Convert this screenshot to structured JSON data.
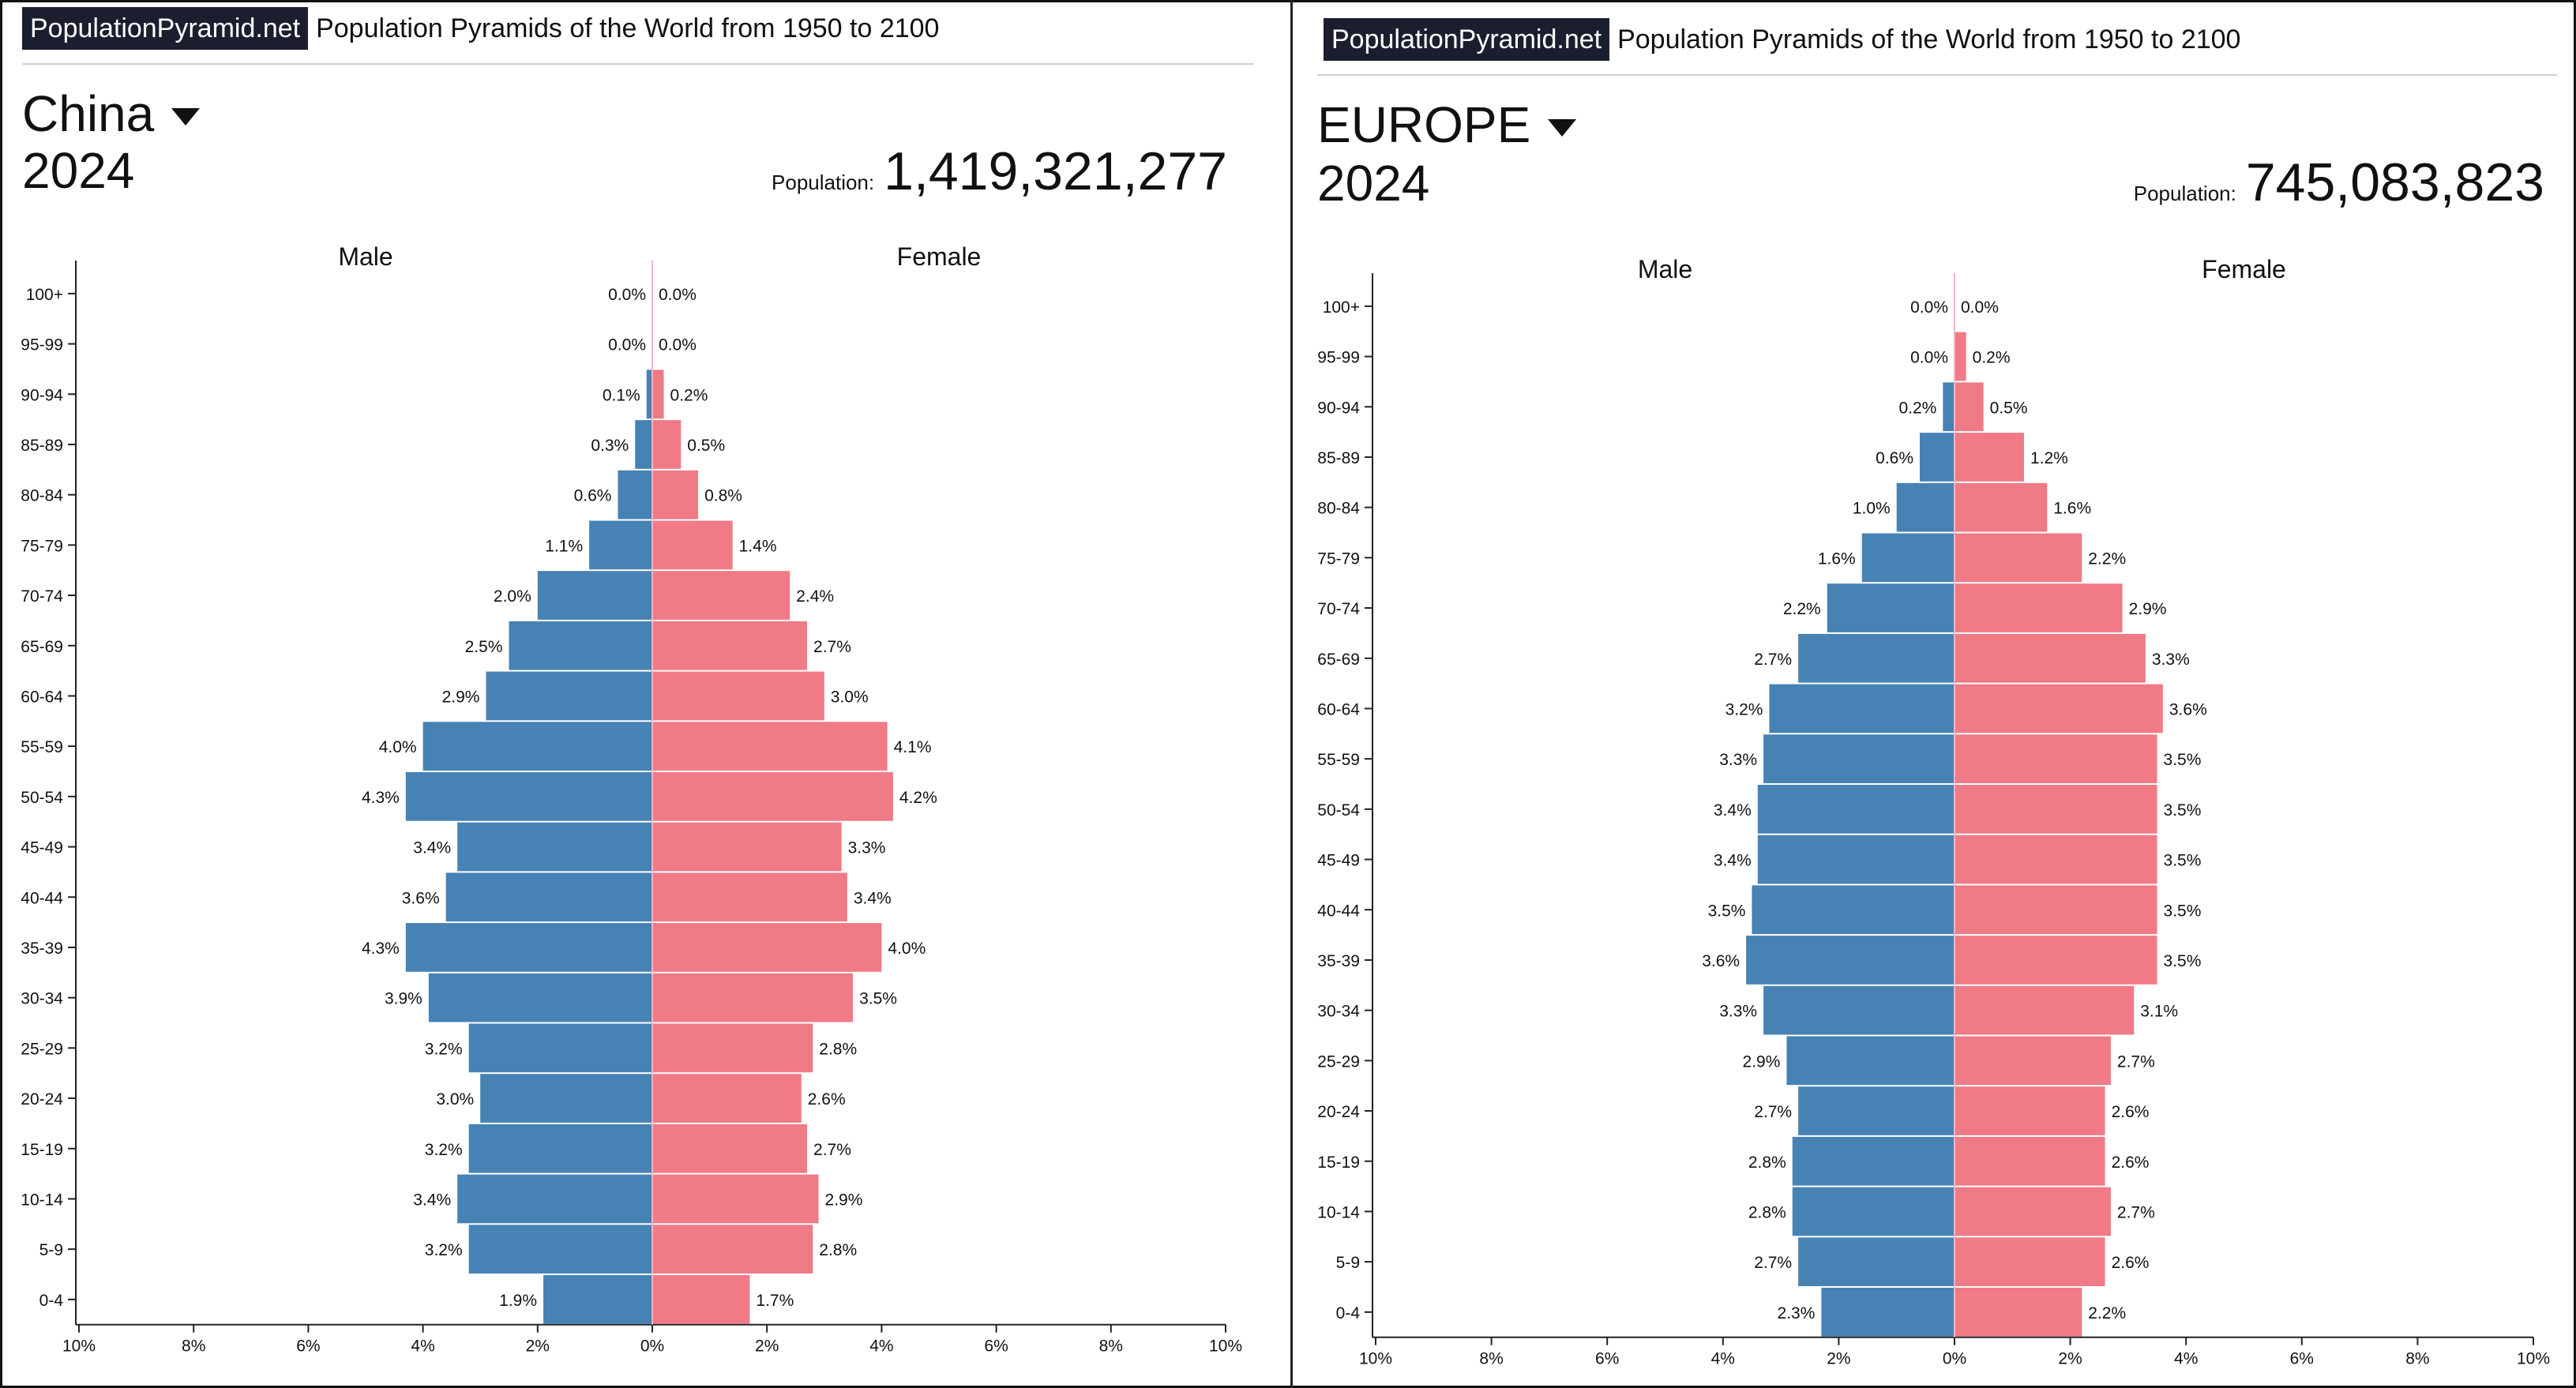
{
  "brand": "PopulationPyramid.net",
  "tagline": "Population Pyramids of the World from 1950 to 2100",
  "population_label": "Population:",
  "colors": {
    "male": "#4682b4",
    "female": "#f07a86",
    "brand_bg": "#1b1e2e"
  },
  "panels": [
    {
      "region": "China",
      "year": "2024",
      "population": "1,419,321,277"
    },
    {
      "region": "EUROPE",
      "year": "2024",
      "population": "745,083,823"
    }
  ],
  "chart_data": [
    {
      "type": "bar",
      "orientation": "horizontal",
      "series": [
        {
          "name": "Male",
          "values": [
            0.0,
            0.0,
            0.1,
            0.3,
            0.6,
            1.1,
            2.0,
            2.5,
            2.9,
            4.0,
            4.3,
            3.4,
            3.6,
            4.3,
            3.9,
            3.2,
            3.0,
            3.2,
            3.4,
            3.2,
            1.9
          ],
          "value_labels": [
            "0.0%",
            "0.0%",
            "0.1%",
            "0.3%",
            "0.6%",
            "1.1%",
            "2.0%",
            "2.5%",
            "2.9%",
            "4.0%",
            "4.3%",
            "3.4%",
            "3.6%",
            "4.3%",
            "3.9%",
            "3.2%",
            "3.0%",
            "3.2%",
            "3.4%",
            "3.2%",
            "1.9%"
          ]
        },
        {
          "name": "Female",
          "values": [
            0.0,
            0.0,
            0.2,
            0.5,
            0.8,
            1.4,
            2.4,
            2.7,
            3.0,
            4.1,
            4.2,
            3.3,
            3.4,
            4.0,
            3.5,
            2.8,
            2.6,
            2.7,
            2.9,
            2.8,
            1.7
          ],
          "value_labels": [
            "0.0%",
            "0.0%",
            "0.2%",
            "0.5%",
            "0.8%",
            "1.4%",
            "2.4%",
            "2.7%",
            "3.0%",
            "4.1%",
            "4.2%",
            "3.3%",
            "3.4%",
            "4.0%",
            "3.5%",
            "2.8%",
            "2.6%",
            "2.7%",
            "2.9%",
            "2.8%",
            "1.7%"
          ]
        }
      ],
      "categories": [
        "100+",
        "95-99",
        "90-94",
        "85-89",
        "80-84",
        "75-79",
        "70-74",
        "65-69",
        "60-64",
        "55-59",
        "50-54",
        "45-49",
        "40-44",
        "35-39",
        "30-34",
        "25-29",
        "20-24",
        "15-19",
        "10-14",
        "5-9",
        "0-4"
      ],
      "xlim": [
        -10,
        10
      ],
      "x_ticks": [
        -10,
        -8,
        -6,
        -4,
        -2,
        0,
        2,
        4,
        6,
        8,
        10
      ],
      "x_tick_labels": [
        "10%",
        "8%",
        "6%",
        "4%",
        "2%",
        "0%",
        "2%",
        "4%",
        "6%",
        "8%",
        "10%"
      ]
    },
    {
      "type": "bar",
      "orientation": "horizontal",
      "series": [
        {
          "name": "Male",
          "values": [
            0.0,
            0.0,
            0.2,
            0.6,
            1.0,
            1.6,
            2.2,
            2.7,
            3.2,
            3.3,
            3.4,
            3.4,
            3.5,
            3.6,
            3.3,
            2.9,
            2.7,
            2.8,
            2.8,
            2.7,
            2.3
          ],
          "value_labels": [
            "0.0%",
            "0.0%",
            "0.2%",
            "0.6%",
            "1.0%",
            "1.6%",
            "2.2%",
            "2.7%",
            "3.2%",
            "3.3%",
            "3.4%",
            "3.4%",
            "3.5%",
            "3.6%",
            "3.3%",
            "2.9%",
            "2.7%",
            "2.8%",
            "2.8%",
            "2.7%",
            "2.3%"
          ]
        },
        {
          "name": "Female",
          "values": [
            0.0,
            0.2,
            0.5,
            1.2,
            1.6,
            2.2,
            2.9,
            3.3,
            3.6,
            3.5,
            3.5,
            3.5,
            3.5,
            3.5,
            3.1,
            2.7,
            2.6,
            2.6,
            2.7,
            2.6,
            2.2
          ],
          "value_labels": [
            "0.0%",
            "0.2%",
            "0.5%",
            "1.2%",
            "1.6%",
            "2.2%",
            "2.9%",
            "3.3%",
            "3.6%",
            "3.5%",
            "3.5%",
            "3.5%",
            "3.5%",
            "3.5%",
            "3.1%",
            "2.7%",
            "2.6%",
            "2.6%",
            "2.7%",
            "2.6%",
            "2.2%"
          ]
        }
      ],
      "categories": [
        "100+",
        "95-99",
        "90-94",
        "85-89",
        "80-84",
        "75-79",
        "70-74",
        "65-69",
        "60-64",
        "55-59",
        "50-54",
        "45-49",
        "40-44",
        "35-39",
        "30-34",
        "25-29",
        "20-24",
        "15-19",
        "10-14",
        "5-9",
        "0-4"
      ],
      "xlim": [
        -10,
        10
      ],
      "x_ticks": [
        -10,
        -8,
        -6,
        -4,
        -2,
        0,
        2,
        4,
        6,
        8,
        10
      ],
      "x_tick_labels": [
        "10%",
        "8%",
        "6%",
        "4%",
        "2%",
        "0%",
        "2%",
        "4%",
        "6%",
        "8%",
        "10%"
      ]
    }
  ]
}
